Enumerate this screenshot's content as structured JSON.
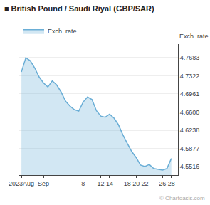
{
  "chart_data": {
    "type": "area",
    "title": "■ British Pound / Saudi Riyal (GBP/SAR)",
    "y_label": "Exch. rate",
    "annotations": [
      "© Chartoasis.com"
    ],
    "categories": [
      "2023Aug",
      null,
      null,
      null,
      null,
      "Sep",
      null,
      null,
      null,
      null,
      null,
      null,
      null,
      null,
      "8",
      null,
      null,
      null,
      "12",
      null,
      "14",
      null,
      null,
      null,
      "18",
      null,
      "20",
      null,
      "22",
      null,
      null,
      null,
      "26",
      null,
      "28"
    ],
    "series": [
      {
        "name": "Exch. rate",
        "color": "#6aaed6",
        "values": [
          4.74,
          4.768,
          4.762,
          4.748,
          4.73,
          4.718,
          4.71,
          4.722,
          4.714,
          4.7,
          4.682,
          4.672,
          4.665,
          4.662,
          4.68,
          4.69,
          4.685,
          4.663,
          4.652,
          4.65,
          4.656,
          4.648,
          4.635,
          4.615,
          4.598,
          4.582,
          4.57,
          4.555,
          4.552,
          4.556,
          4.548,
          4.546,
          4.545,
          4.548,
          4.568
        ]
      }
    ],
    "ylim": [
      4.535,
      4.795
    ],
    "yticks": [
      4.5516,
      4.5877,
      4.6238,
      {
        "value": 4.66,
        "label": "4.6600"
      },
      4.6961,
      4.7322,
      4.7683
    ],
    "grid": true,
    "legend": "upper left"
  }
}
